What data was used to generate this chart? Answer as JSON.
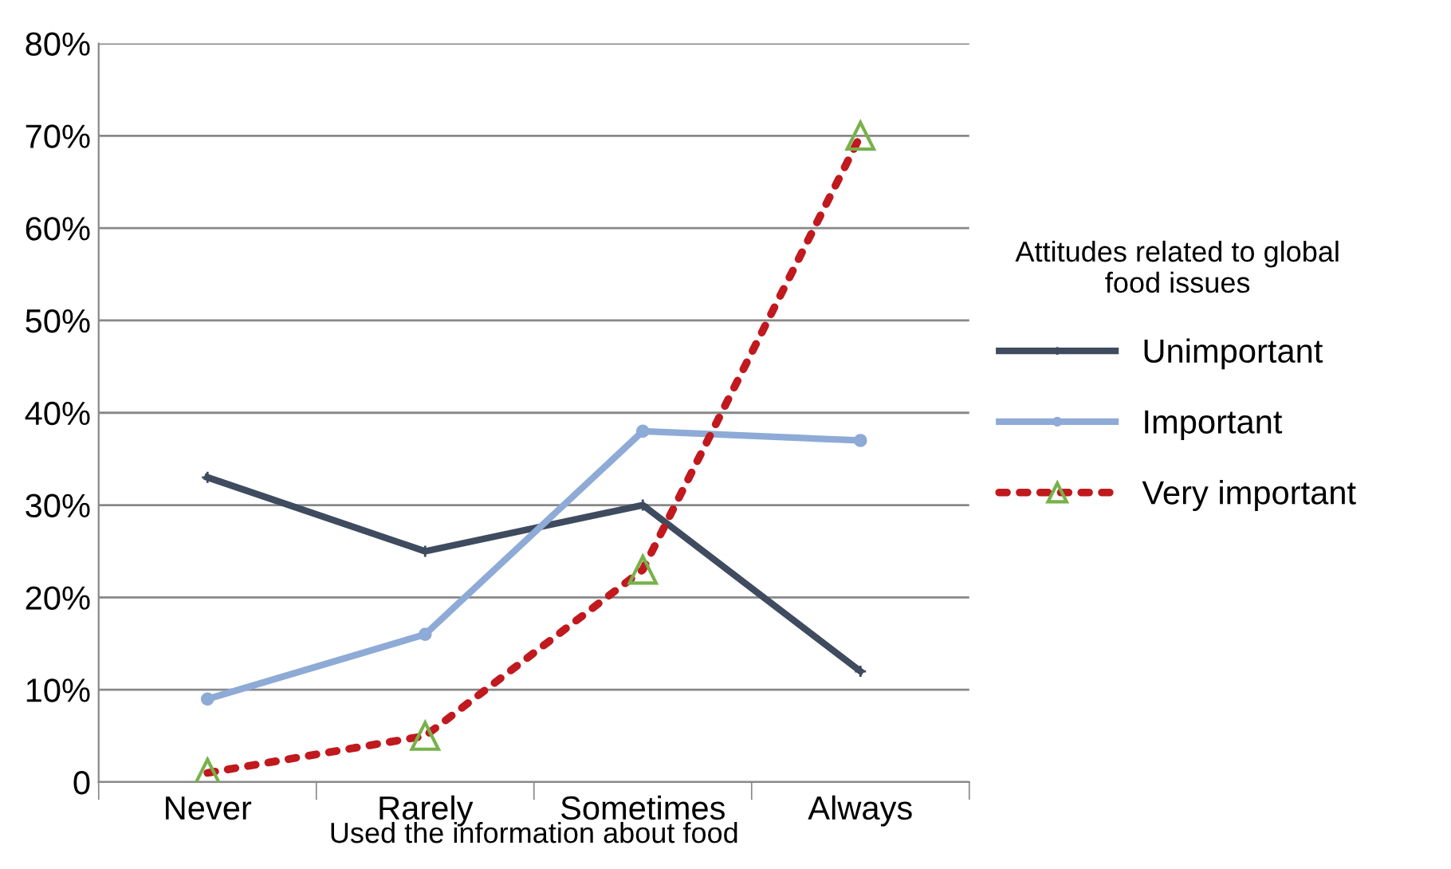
{
  "chart_data": {
    "type": "line",
    "xlabel": "Used the information about food",
    "legend_title": "Attitudes related to global\nfood issues",
    "categories": [
      "Never",
      "Rarely",
      "Sometimes",
      "Always"
    ],
    "series": [
      {
        "name": "Unimportant",
        "color": "#3f4b5e",
        "marker": "cross",
        "line_style": "solid",
        "values": [
          33,
          25,
          30,
          12
        ]
      },
      {
        "name": "Important",
        "color": "#8eaad6",
        "marker": "circle",
        "line_style": "solid",
        "values": [
          9,
          16,
          38,
          37
        ]
      },
      {
        "name": "Very important",
        "color": "#c0191e",
        "marker": "triangle",
        "line_style": "dotted",
        "values": [
          1,
          5,
          23,
          70
        ]
      }
    ],
    "ylim": [
      0,
      80
    ],
    "yticks": [
      {
        "value": 0,
        "label": "0"
      },
      {
        "value": 10,
        "label": "10%"
      },
      {
        "value": 20,
        "label": "20%"
      },
      {
        "value": 30,
        "label": "30%"
      },
      {
        "value": 40,
        "label": "40%"
      },
      {
        "value": 50,
        "label": "50%"
      },
      {
        "value": 60,
        "label": "60%"
      },
      {
        "value": 70,
        "label": "70%"
      },
      {
        "value": 80,
        "label": "80%"
      }
    ],
    "grid": "y",
    "legend": "right"
  }
}
